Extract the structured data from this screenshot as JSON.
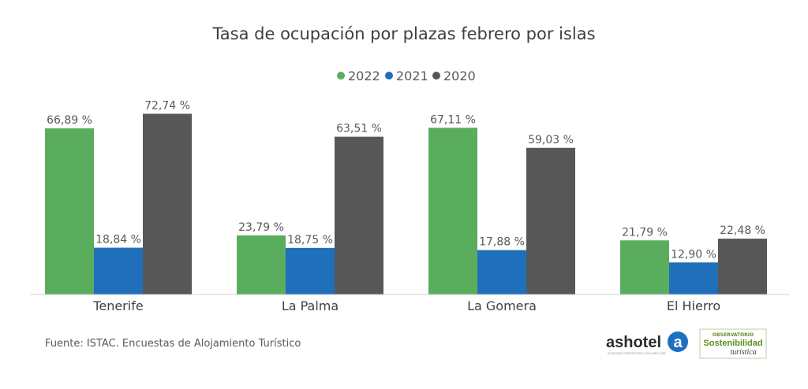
{
  "chart_data": {
    "type": "bar",
    "title": "Tasa de ocupación por plazas febrero por islas",
    "categories": [
      "Tenerife",
      "La Palma",
      "La Gomera",
      "El Hierro"
    ],
    "series": [
      {
        "name": "2022",
        "color": "#5bad5e",
        "values": [
          66.89,
          23.79,
          67.11,
          21.79
        ],
        "labels": [
          "66,89 %",
          "23,79 %",
          "67,11 %",
          "21,79 %"
        ]
      },
      {
        "name": "2021",
        "color": "#1f6fba",
        "values": [
          18.84,
          18.75,
          17.88,
          12.9
        ],
        "labels": [
          "18,84 %",
          "18,75 %",
          "17,88 %",
          "12,90 %"
        ]
      },
      {
        "name": "2020",
        "color": "#575757",
        "values": [
          72.74,
          63.51,
          59.03,
          22.48
        ],
        "labels": [
          "72,74 %",
          "63,51 %",
          "59,03 %",
          "22,48 %"
        ]
      }
    ],
    "legend_position": "top-center",
    "grid": false
  },
  "source": "Fuente: ISTAC. Encuestas de Alojamiento Turístico",
  "logos": {
    "ashotel_name": "ashotel",
    "ashotel_mark": "a",
    "ashotel_tagline": "ASOCIACIÓN HOTELERA Y EXTRAHOTELERA DE TENERIFE, LA PALMA, LA GOMERA Y EL HIERRO",
    "observatorio_top": "OBSERVATORIO",
    "observatorio_main": "Sostenibilidad",
    "observatorio_sub": "turística"
  }
}
